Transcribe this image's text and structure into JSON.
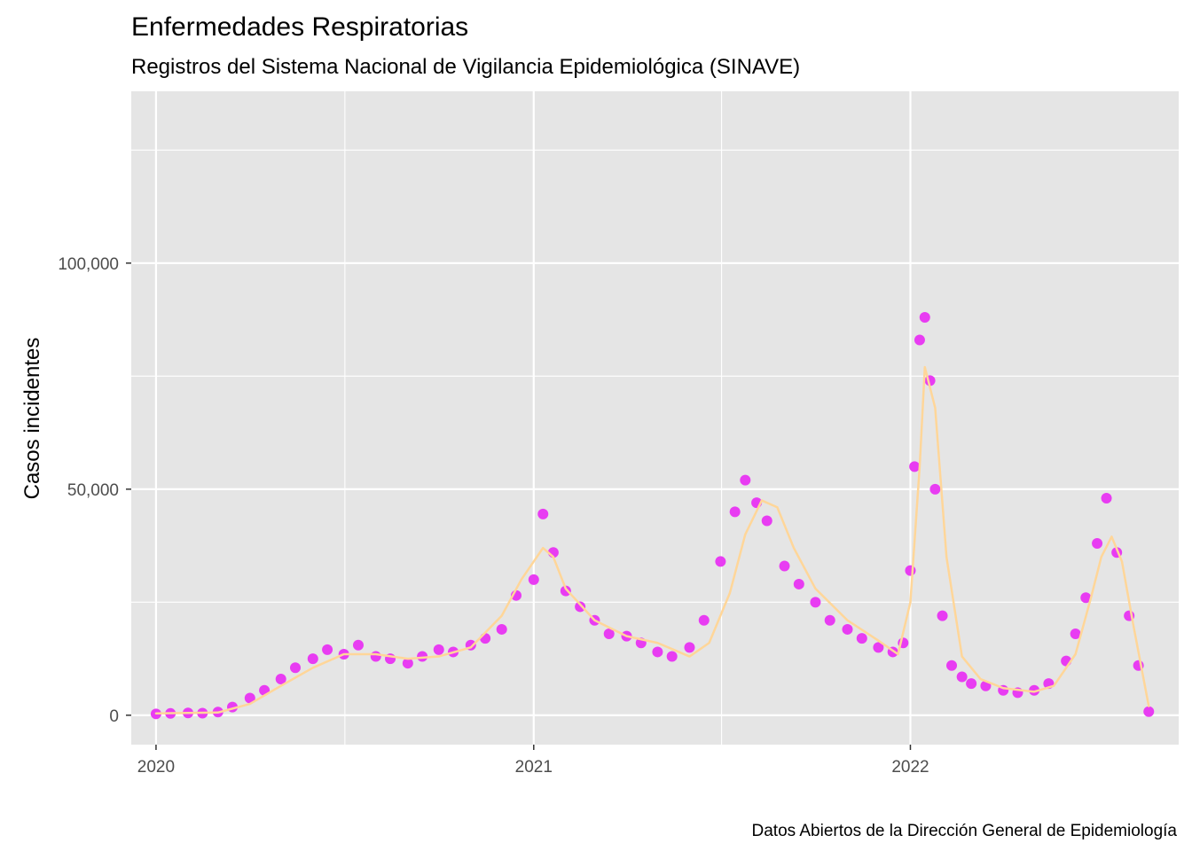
{
  "chart_data": {
    "type": "scatter",
    "title": "Enfermedades Respiratorias",
    "subtitle": "Registros del Sistema Nacional de Vigilancia Epidemiológica (SINAVE)",
    "caption": "Datos Abiertos de la Dirección General de Epidemiología",
    "xlabel": "",
    "ylabel": "Casos incidentes",
    "x_ticks": [
      "2020",
      "2021",
      "2022"
    ],
    "y_ticks": [
      "0",
      "50,000",
      "100,000"
    ],
    "ylim": [
      -6500,
      138000
    ],
    "xlim": [
      "2019-12-08",
      "2022-09-18"
    ],
    "grid": true,
    "legend": "none",
    "colors": {
      "points": "#E83CF2",
      "smooth": "#FFD699",
      "panel": "#E5E5E5",
      "grid": "#FFFFFF"
    },
    "series": [
      {
        "type": "points",
        "x": [
          "2020-01-01",
          "2020-01-15",
          "2020-02-01",
          "2020-02-15",
          "2020-03-01",
          "2020-03-15",
          "2020-04-01",
          "2020-04-15",
          "2020-05-01",
          "2020-05-15",
          "2020-06-01",
          "2020-06-15",
          "2020-07-01",
          "2020-07-15",
          "2020-08-01",
          "2020-08-15",
          "2020-09-01",
          "2020-09-15",
          "2020-10-01",
          "2020-10-15",
          "2020-11-01",
          "2020-11-15",
          "2020-12-01",
          "2020-12-15",
          "2021-01-01",
          "2021-01-10",
          "2021-01-20",
          "2021-02-01",
          "2021-02-15",
          "2021-03-01",
          "2021-03-15",
          "2021-04-01",
          "2021-04-15",
          "2021-05-01",
          "2021-05-15",
          "2021-06-01",
          "2021-06-15",
          "2021-07-01",
          "2021-07-15",
          "2021-07-25",
          "2021-08-05",
          "2021-08-15",
          "2021-09-01",
          "2021-09-15",
          "2021-10-01",
          "2021-10-15",
          "2021-11-01",
          "2021-11-15",
          "2021-12-01",
          "2021-12-15",
          "2021-12-25",
          "2022-01-01",
          "2022-01-05",
          "2022-01-10",
          "2022-01-15",
          "2022-01-20",
          "2022-01-25",
          "2022-02-01",
          "2022-02-10",
          "2022-02-20",
          "2022-03-01",
          "2022-03-15",
          "2022-04-01",
          "2022-04-15",
          "2022-05-01",
          "2022-05-15",
          "2022-06-01",
          "2022-06-10",
          "2022-06-20",
          "2022-07-01",
          "2022-07-10",
          "2022-07-20",
          "2022-08-01",
          "2022-08-10",
          "2022-08-20"
        ],
        "y": [
          300,
          400,
          500,
          450,
          700,
          1800,
          3800,
          5500,
          8000,
          10500,
          12500,
          14500,
          13500,
          15500,
          13000,
          12500,
          11500,
          13000,
          14500,
          14000,
          15500,
          17000,
          19000,
          26500,
          30000,
          44500,
          36000,
          27500,
          24000,
          21000,
          18000,
          17500,
          16000,
          14000,
          13000,
          15000,
          21000,
          34000,
          45000,
          52000,
          47000,
          43000,
          33000,
          29000,
          25000,
          21000,
          19000,
          17000,
          15000,
          14000,
          16000,
          32000,
          55000,
          83000,
          88000,
          74000,
          50000,
          22000,
          11000,
          8500,
          7000,
          6500,
          5500,
          5000,
          5500,
          7000,
          12000,
          18000,
          26000,
          38000,
          48000,
          36000,
          22000,
          11000,
          800
        ]
      },
      {
        "type": "smooth",
        "x": [
          "2020-01-01",
          "2020-02-01",
          "2020-03-01",
          "2020-04-01",
          "2020-05-01",
          "2020-06-01",
          "2020-07-01",
          "2020-08-01",
          "2020-09-01",
          "2020-10-01",
          "2020-11-01",
          "2020-12-01",
          "2020-12-20",
          "2021-01-01",
          "2021-01-10",
          "2021-01-20",
          "2021-02-01",
          "2021-03-01",
          "2021-04-01",
          "2021-05-01",
          "2021-06-01",
          "2021-06-20",
          "2021-07-10",
          "2021-07-25",
          "2021-08-10",
          "2021-08-25",
          "2021-09-10",
          "2021-10-01",
          "2021-11-01",
          "2021-12-01",
          "2021-12-20",
          "2022-01-01",
          "2022-01-10",
          "2022-01-15",
          "2022-01-25",
          "2022-02-05",
          "2022-02-20",
          "2022-03-10",
          "2022-04-01",
          "2022-05-01",
          "2022-05-20",
          "2022-06-10",
          "2022-06-25",
          "2022-07-05",
          "2022-07-15",
          "2022-07-25",
          "2022-08-05",
          "2022-08-20"
        ],
        "y": [
          400,
          500,
          600,
          2500,
          6500,
          10500,
          13500,
          13500,
          12500,
          13000,
          15000,
          22000,
          30000,
          34000,
          37000,
          35000,
          28000,
          21000,
          17500,
          16000,
          13000,
          16000,
          27000,
          40000,
          47500,
          46000,
          37000,
          28000,
          21000,
          16500,
          13500,
          25000,
          55000,
          77000,
          68000,
          35000,
          13000,
          8000,
          6000,
          5200,
          6500,
          13500,
          26000,
          35000,
          39500,
          34000,
          20000,
          2000
        ]
      }
    ]
  }
}
